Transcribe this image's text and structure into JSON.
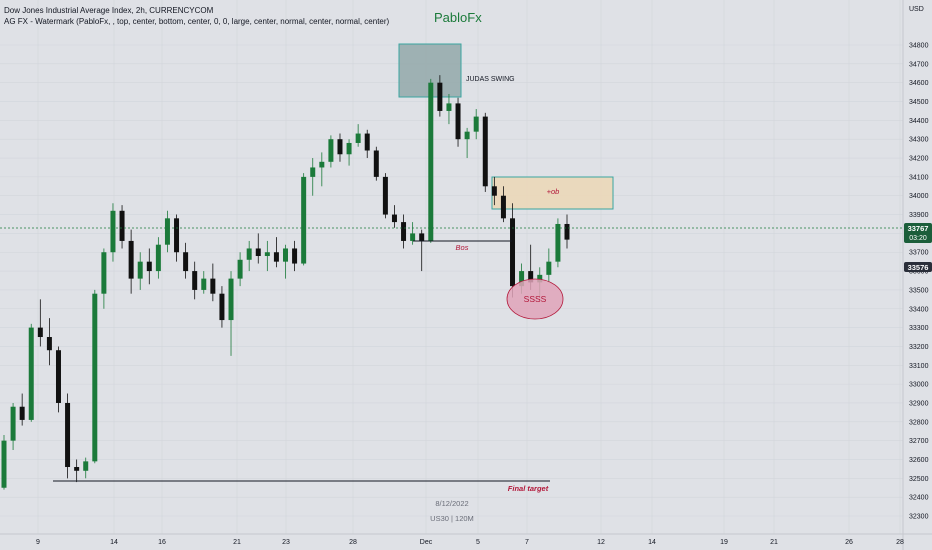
{
  "header": {
    "title": "Dow Jones Industrial Average Index, 2h, CURRENCYCOM",
    "indicator": "AG FX - Watermark (PabloFx, , top, center, bottom, center, 0, 0, large, center, normal, center, normal, center)"
  },
  "watermark": {
    "top_text": "PabloFx",
    "date_text": "8/12/2022",
    "symbol_text": "US30 | 120M"
  },
  "price_axis": {
    "currency": "USD",
    "current_price": "33767",
    "countdown": "03:20",
    "marked_price": "33576"
  },
  "annotations": {
    "judas": "JUDAS SWING",
    "ob": "+ob",
    "bos": "Bos",
    "ssss": "SSSS",
    "final_target": "Final target"
  },
  "colors": {
    "background": "#dfe1e6",
    "up_candle": "#1b7a3a",
    "down_candle": "#111111",
    "judas_box": "#93a8a9",
    "ob_box": "#ead8bb",
    "ssss_ellipse": "#e1a3b8",
    "label_red": "#b2183a",
    "current_price_tag": "#1b5e3a",
    "marked_price_tag": "#2a2e39"
  },
  "chart_data": {
    "type": "candlestick",
    "title": "Dow Jones Industrial Average Index, 2h, CURRENCYCOM",
    "ylim": [
      32250,
      34850
    ],
    "y_ticks": [
      32300,
      32400,
      32500,
      32600,
      32700,
      32800,
      32900,
      33000,
      33100,
      33200,
      33300,
      33400,
      33500,
      33600,
      33700,
      33800,
      33900,
      34000,
      34100,
      34200,
      34300,
      34400,
      34500,
      34600,
      34700,
      34800
    ],
    "x_ticks": [
      "9",
      "14",
      "16",
      "21",
      "23",
      "28",
      "Dec",
      "5",
      "7",
      "12",
      "14",
      "19",
      "21",
      "26",
      "28"
    ],
    "current_price": 33767,
    "marked_price": 33576,
    "series": [
      {
        "values": [
          [
            32450,
            32730,
            32440,
            32700
          ],
          [
            32700,
            32900,
            32650,
            32880
          ],
          [
            32880,
            32950,
            32780,
            32810
          ],
          [
            32810,
            33320,
            32800,
            33300
          ],
          [
            33300,
            33450,
            33200,
            33250
          ],
          [
            33250,
            33350,
            33100,
            33180
          ],
          [
            33180,
            33200,
            32850,
            32900
          ],
          [
            32900,
            32950,
            32500,
            32560
          ],
          [
            32560,
            32600,
            32480,
            32540
          ],
          [
            32540,
            32610,
            32500,
            32590
          ],
          [
            32590,
            33500,
            32580,
            33480
          ],
          [
            33480,
            33720,
            33400,
            33700
          ],
          [
            33700,
            33960,
            33650,
            33920
          ],
          [
            33920,
            33950,
            33720,
            33760
          ],
          [
            33760,
            33820,
            33480,
            33560
          ],
          [
            33560,
            33700,
            33500,
            33650
          ],
          [
            33650,
            33720,
            33530,
            33600
          ],
          [
            33600,
            33780,
            33560,
            33740
          ],
          [
            33740,
            33920,
            33700,
            33880
          ],
          [
            33880,
            33900,
            33650,
            33700
          ],
          [
            33700,
            33750,
            33560,
            33600
          ],
          [
            33600,
            33650,
            33450,
            33500
          ],
          [
            33500,
            33600,
            33480,
            33560
          ],
          [
            33560,
            33640,
            33440,
            33480
          ],
          [
            33480,
            33520,
            33300,
            33340
          ],
          [
            33340,
            33600,
            33150,
            33560
          ],
          [
            33560,
            33700,
            33520,
            33660
          ],
          [
            33660,
            33760,
            33600,
            33720
          ],
          [
            33720,
            33800,
            33640,
            33680
          ],
          [
            33680,
            33760,
            33600,
            33700
          ],
          [
            33700,
            33780,
            33620,
            33650
          ],
          [
            33650,
            33740,
            33560,
            33720
          ],
          [
            33720,
            33760,
            33600,
            33640
          ],
          [
            33640,
            34120,
            33630,
            34100
          ],
          [
            34100,
            34200,
            34000,
            34150
          ],
          [
            34150,
            34230,
            34050,
            34180
          ],
          [
            34180,
            34320,
            34150,
            34300
          ],
          [
            34300,
            34330,
            34180,
            34220
          ],
          [
            34220,
            34300,
            34160,
            34280
          ],
          [
            34280,
            34380,
            34260,
            34330
          ],
          [
            34330,
            34350,
            34200,
            34240
          ],
          [
            34240,
            34260,
            34080,
            34100
          ],
          [
            34100,
            34120,
            33880,
            33900
          ],
          [
            33900,
            33950,
            33830,
            33860
          ],
          [
            33860,
            33900,
            33720,
            33760
          ],
          [
            33760,
            33860,
            33740,
            33800
          ],
          [
            33800,
            33820,
            33600,
            33760
          ],
          [
            33760,
            34620,
            33750,
            34600
          ],
          [
            34600,
            34640,
            34420,
            34450
          ],
          [
            34450,
            34540,
            34380,
            34490
          ],
          [
            34490,
            34520,
            34260,
            34300
          ],
          [
            34300,
            34360,
            34200,
            34340
          ],
          [
            34340,
            34460,
            34300,
            34420
          ],
          [
            34420,
            34440,
            34020,
            34050
          ],
          [
            34050,
            34100,
            33950,
            34000
          ],
          [
            34000,
            34050,
            33860,
            33880
          ],
          [
            33880,
            33960,
            33460,
            33520
          ],
          [
            33520,
            33640,
            33480,
            33600
          ],
          [
            33600,
            33740,
            33500,
            33540
          ],
          [
            33540,
            33620,
            33460,
            33580
          ],
          [
            33580,
            33720,
            33540,
            33650
          ],
          [
            33650,
            33880,
            33620,
            33850
          ],
          [
            33850,
            33900,
            33720,
            33767
          ]
        ]
      }
    ]
  }
}
